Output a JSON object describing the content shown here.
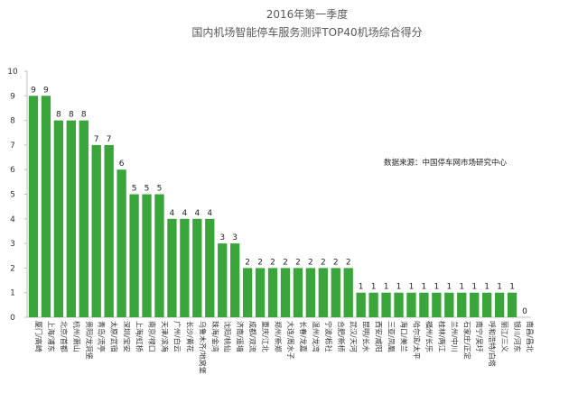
{
  "chart_data": {
    "type": "bar",
    "title": "2016年第一季度",
    "subtitle": "国内机场智能停车服务测评TOP40机场综合得分",
    "annotation": "数据来源：中国停车网市场研究中心",
    "ylim": [
      0,
      10
    ],
    "yticks": [
      "0",
      "1",
      "2",
      "3",
      "4",
      "5",
      "6",
      "7",
      "8",
      "9",
      "10"
    ],
    "grid": false,
    "legend": "none",
    "bar_color": "#3aa53a",
    "categories": [
      "厦门/高崎",
      "上海/浦东",
      "北京/首都",
      "杭州/萧山",
      "贵阳/龙洞堡",
      "青岛/流亭",
      "太原/武宿",
      "深圳/宝安",
      "上海/虹桥",
      "南京/禄口",
      "天津/滨海",
      "广州/白云",
      "长沙/黄花",
      "乌鲁木齐/地窝堡",
      "珠海/金湾",
      "沈阳/桃仙",
      "济南/遥墙",
      "成都/双流",
      "重庆/江北",
      "郑州/新郑",
      "大连/周水子",
      "长春/龙嘉",
      "温州/龙湾",
      "宁波/栎社",
      "合肥/新桥",
      "武汉/天河",
      "昆明/长水",
      "西安/咸阳",
      "三亚/凤凰",
      "海口/美兰",
      "哈尔滨/太平",
      "福州/长乐",
      "桂林/两江",
      "兰州/中川",
      "石家庄/正定",
      "南宁/吴圩",
      "呼和浩特/白塔",
      "丽江/三义",
      "银川/河东",
      "南昌/昌北"
    ],
    "values": [
      9,
      9,
      8,
      8,
      8,
      7,
      7,
      6,
      5,
      5,
      5,
      4,
      4,
      4,
      4,
      3,
      3,
      2,
      2,
      2,
      2,
      2,
      2,
      2,
      2,
      2,
      1,
      1,
      1,
      1,
      1,
      1,
      1,
      1,
      1,
      1,
      1,
      1,
      1,
      0
    ]
  }
}
